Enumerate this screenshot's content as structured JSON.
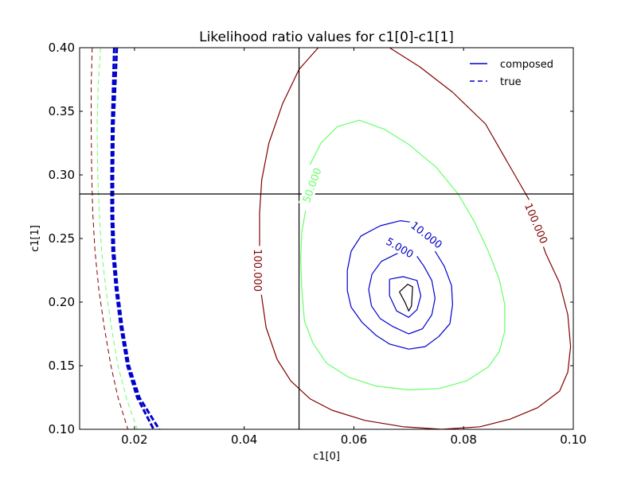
{
  "chart_data": {
    "type": "contour",
    "title": "Likelihood ratio values for c1[0]-c1[1]",
    "xlabel": "c1[0]",
    "ylabel": "c1[1]",
    "xlim": [
      0.01,
      0.1
    ],
    "ylim": [
      0.1,
      0.4
    ],
    "xticks": [
      0.02,
      0.04,
      0.06,
      0.08,
      0.1
    ],
    "xtick_labels": [
      "0.02",
      "0.04",
      "0.06",
      "0.08",
      "0.10"
    ],
    "yticks": [
      0.1,
      0.15,
      0.2,
      0.25,
      0.3,
      0.35,
      0.4
    ],
    "ytick_labels": [
      "0.10",
      "0.15",
      "0.20",
      "0.25",
      "0.30",
      "0.35",
      "0.40"
    ],
    "grid": false,
    "legend": {
      "placement": "top-right",
      "entries": [
        {
          "label": "composed",
          "style": "solid",
          "color": "#0000cc"
        },
        {
          "label": "true",
          "style": "dashed",
          "color": "#0000cc"
        }
      ]
    },
    "reference_lines": {
      "vertical_x": 0.05,
      "horizontal_y": 0.285
    },
    "composed_contours": [
      {
        "level": 100.0,
        "label": "100.000",
        "color": "#800000",
        "points": [
          [
            0.0535,
            0.4
          ],
          [
            0.05,
            0.383
          ],
          [
            0.047,
            0.356
          ],
          [
            0.0445,
            0.325
          ],
          [
            0.0432,
            0.296
          ],
          [
            0.0428,
            0.27
          ],
          [
            0.0428,
            0.255
          ],
          [
            0.0428,
            0.24
          ],
          [
            0.043,
            0.21
          ],
          [
            0.044,
            0.18
          ],
          [
            0.046,
            0.155
          ],
          [
            0.0485,
            0.138
          ],
          [
            0.052,
            0.124
          ],
          [
            0.056,
            0.115
          ],
          [
            0.062,
            0.107
          ],
          [
            0.069,
            0.102
          ],
          [
            0.076,
            0.1
          ],
          [
            0.083,
            0.102
          ],
          [
            0.0885,
            0.108
          ],
          [
            0.0935,
            0.117
          ],
          [
            0.0975,
            0.13
          ],
          [
            0.099,
            0.145
          ],
          [
            0.0995,
            0.165
          ],
          [
            0.099,
            0.19
          ],
          [
            0.0975,
            0.215
          ],
          [
            0.095,
            0.238
          ],
          [
            0.094,
            0.25
          ],
          [
            0.092,
            0.28
          ],
          [
            0.088,
            0.31
          ],
          [
            0.084,
            0.34
          ],
          [
            0.078,
            0.365
          ],
          [
            0.072,
            0.385
          ],
          [
            0.0665,
            0.4
          ]
        ],
        "label_positions": [
          {
            "x": 0.0425,
            "y": 0.225,
            "angle": 90
          },
          {
            "x": 0.0933,
            "y": 0.262,
            "angle": 67
          }
        ]
      },
      {
        "level": 50.0,
        "label": "50.000",
        "color": "#66ff66",
        "points": [
          [
            0.0512,
            0.272
          ],
          [
            0.0505,
            0.255
          ],
          [
            0.0503,
            0.235
          ],
          [
            0.0505,
            0.21
          ],
          [
            0.051,
            0.185
          ],
          [
            0.0525,
            0.168
          ],
          [
            0.055,
            0.152
          ],
          [
            0.059,
            0.141
          ],
          [
            0.064,
            0.134
          ],
          [
            0.07,
            0.131
          ],
          [
            0.0755,
            0.132
          ],
          [
            0.0805,
            0.138
          ],
          [
            0.0845,
            0.149
          ],
          [
            0.0865,
            0.161
          ],
          [
            0.0875,
            0.177
          ],
          [
            0.0875,
            0.198
          ],
          [
            0.0865,
            0.218
          ],
          [
            0.0845,
            0.24
          ],
          [
            0.082,
            0.263
          ],
          [
            0.079,
            0.285
          ],
          [
            0.075,
            0.306
          ],
          [
            0.07,
            0.324
          ],
          [
            0.0655,
            0.336
          ],
          [
            0.061,
            0.343
          ],
          [
            0.057,
            0.338
          ],
          [
            0.054,
            0.325
          ],
          [
            0.052,
            0.308
          ]
        ],
        "label_positions": [
          {
            "x": 0.0523,
            "y": 0.292,
            "angle": -70
          }
        ]
      },
      {
        "level": 10.0,
        "label": "10.000",
        "color": "#0000cc",
        "points": [
          [
            0.0718,
            0.262
          ],
          [
            0.0685,
            0.264
          ],
          [
            0.0648,
            0.26
          ],
          [
            0.0613,
            0.252
          ],
          [
            0.0595,
            0.24
          ],
          [
            0.0588,
            0.225
          ],
          [
            0.0588,
            0.209
          ],
          [
            0.0595,
            0.196
          ],
          [
            0.0615,
            0.184
          ],
          [
            0.064,
            0.174
          ],
          [
            0.0665,
            0.167
          ],
          [
            0.07,
            0.163
          ],
          [
            0.073,
            0.165
          ],
          [
            0.0755,
            0.173
          ],
          [
            0.0775,
            0.183
          ],
          [
            0.078,
            0.198
          ],
          [
            0.0778,
            0.213
          ],
          [
            0.0765,
            0.228
          ],
          [
            0.0748,
            0.24
          ]
        ],
        "label_positions": [
          {
            "x": 0.0733,
            "y": 0.253,
            "angle": 38
          }
        ]
      },
      {
        "level": 5.0,
        "label": "5.000",
        "color": "#0000cc",
        "points": [
          [
            0.0708,
            0.241
          ],
          [
            0.0678,
            0.238
          ],
          [
            0.065,
            0.232
          ],
          [
            0.0633,
            0.222
          ],
          [
            0.0627,
            0.21
          ],
          [
            0.0632,
            0.197
          ],
          [
            0.0648,
            0.187
          ],
          [
            0.067,
            0.181
          ],
          [
            0.07,
            0.175
          ],
          [
            0.0725,
            0.179
          ],
          [
            0.0742,
            0.19
          ],
          [
            0.0748,
            0.203
          ],
          [
            0.0742,
            0.217
          ],
          [
            0.0728,
            0.228
          ],
          [
            0.0715,
            0.236
          ]
        ],
        "label_positions": [
          {
            "x": 0.0684,
            "y": 0.243,
            "angle": 30
          }
        ]
      },
      {
        "level": null,
        "label": "",
        "color": "#0000cc",
        "points": [
          [
            0.0665,
            0.218
          ],
          [
            0.069,
            0.22
          ],
          [
            0.0715,
            0.217
          ],
          [
            0.0722,
            0.205
          ],
          [
            0.0715,
            0.194
          ],
          [
            0.07,
            0.188
          ],
          [
            0.0678,
            0.193
          ],
          [
            0.0665,
            0.205
          ],
          [
            0.0665,
            0.218
          ]
        ]
      },
      {
        "level": null,
        "label": "",
        "color": "#000000",
        "points": [
          [
            0.0683,
            0.208
          ],
          [
            0.0698,
            0.214
          ],
          [
            0.0707,
            0.212
          ],
          [
            0.0705,
            0.197
          ],
          [
            0.07,
            0.193
          ],
          [
            0.0693,
            0.2
          ],
          [
            0.0683,
            0.208
          ]
        ]
      }
    ],
    "true_contours": [
      {
        "level": 100.0,
        "color": "#800000",
        "width": 1,
        "points": [
          [
            0.0123,
            0.4
          ],
          [
            0.0121,
            0.37
          ],
          [
            0.0121,
            0.34
          ],
          [
            0.0122,
            0.3
          ],
          [
            0.0124,
            0.27
          ],
          [
            0.0128,
            0.24
          ],
          [
            0.0135,
            0.21
          ],
          [
            0.0145,
            0.18
          ],
          [
            0.0157,
            0.15
          ],
          [
            0.017,
            0.125
          ],
          [
            0.0188,
            0.1
          ]
        ]
      },
      {
        "level": 50.0,
        "color": "#66ff66",
        "width": 1,
        "points": [
          [
            0.0138,
            0.4
          ],
          [
            0.0134,
            0.37
          ],
          [
            0.0132,
            0.34
          ],
          [
            0.0133,
            0.3
          ],
          [
            0.0136,
            0.27
          ],
          [
            0.014,
            0.24
          ],
          [
            0.0148,
            0.21
          ],
          [
            0.0158,
            0.18
          ],
          [
            0.017,
            0.15
          ],
          [
            0.0185,
            0.125
          ],
          [
            0.0205,
            0.1
          ]
        ]
      },
      {
        "level": 10.0,
        "color": "#0000cc",
        "width": 3,
        "points": [
          [
            0.0163,
            0.4
          ],
          [
            0.0161,
            0.37
          ],
          [
            0.0159,
            0.34
          ],
          [
            0.0158,
            0.3
          ],
          [
            0.0158,
            0.27
          ],
          [
            0.016,
            0.24
          ],
          [
            0.0166,
            0.21
          ],
          [
            0.0175,
            0.18
          ],
          [
            0.0187,
            0.15
          ],
          [
            0.0205,
            0.125
          ],
          [
            0.0235,
            0.1
          ]
        ]
      },
      {
        "level": 5.0,
        "color": "#0000cc",
        "width": 3,
        "points": [
          [
            0.0168,
            0.4
          ],
          [
            0.0165,
            0.37
          ],
          [
            0.0162,
            0.34
          ],
          [
            0.0161,
            0.3
          ],
          [
            0.0161,
            0.27
          ],
          [
            0.0163,
            0.24
          ],
          [
            0.0169,
            0.21
          ],
          [
            0.0178,
            0.18
          ],
          [
            0.019,
            0.15
          ],
          [
            0.0209,
            0.125
          ],
          [
            0.0245,
            0.1
          ]
        ]
      }
    ]
  }
}
